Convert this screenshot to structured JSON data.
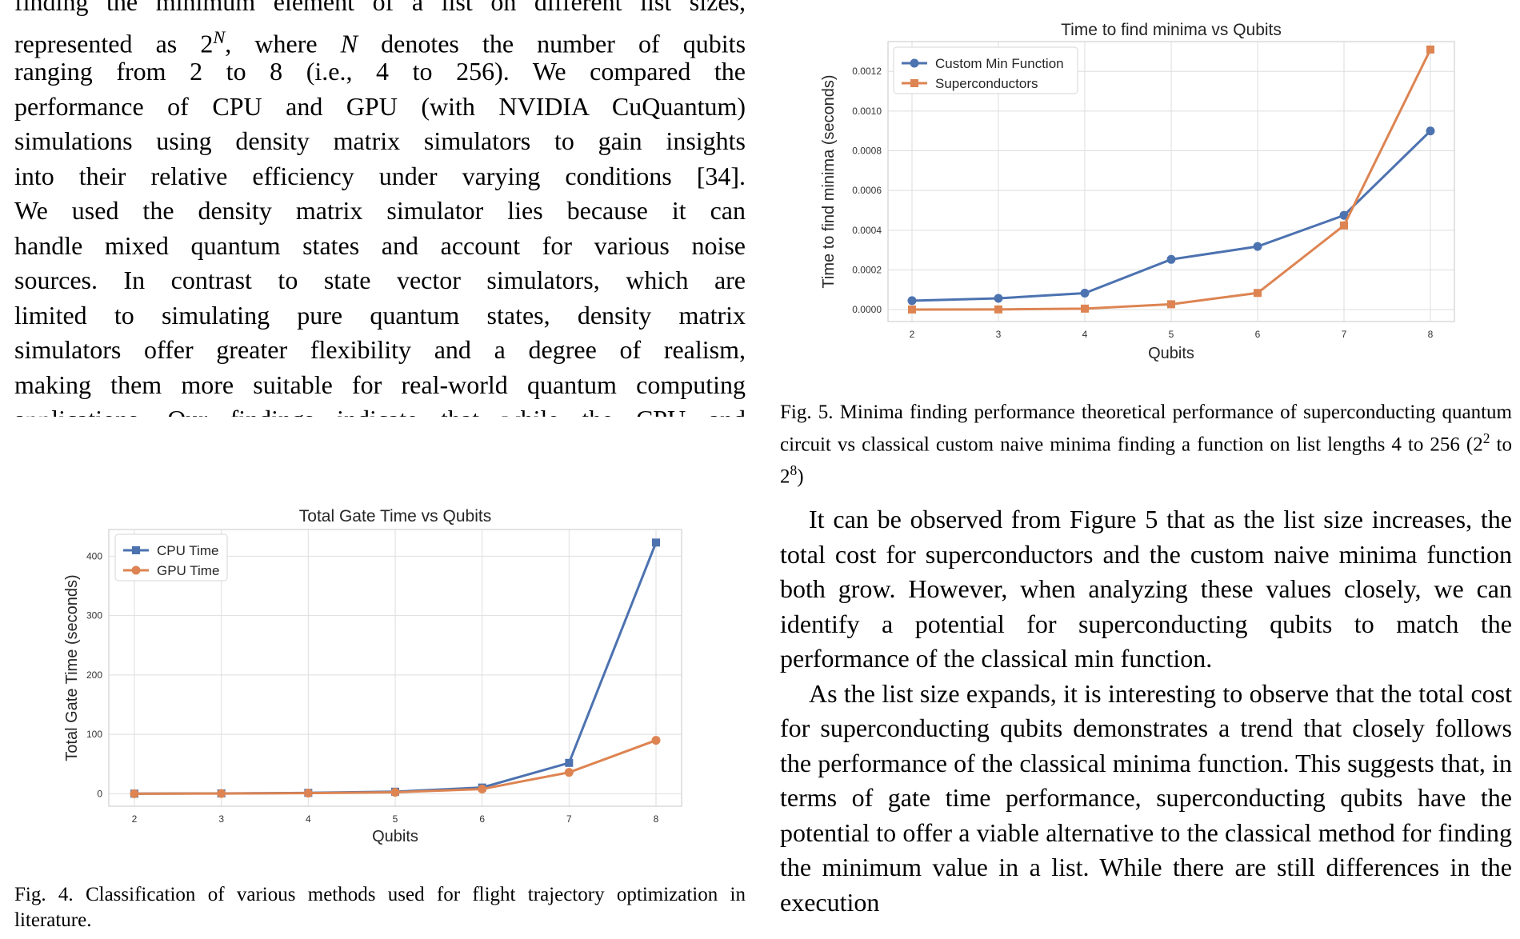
{
  "left_text": {
    "lines": [
      "finding the minimum element of a list on different list sizes,",
      "represented as 2^N, where N denotes the number of qubits",
      "ranging from 2 to 8 (i.e., 4 to 256). We compared the",
      "performance of CPU and GPU (with NVIDIA CuQuantum)",
      "simulations using density matrix simulators to gain insights",
      "into their relative efficiency under varying conditions [34].",
      "We used the density matrix simulator lies because it can",
      "handle mixed quantum states and account for various noise",
      "sources. In contrast to state vector simulators, which are",
      "limited to simulating pure quantum states, density matrix",
      "simulators offer greater flexibility and a degree of realism,",
      "making them more suitable for real-world quantum computing",
      "applications. Our findings indicate that while the CPU and"
    ]
  },
  "fig5": {
    "caption": "Fig. 5.  Minima finding performance theoretical performance of superconducting quantum circuit vs classical custom naive minima finding a function on list lengths 4 to 256 (2^2 to 2^8)"
  },
  "fig4": {
    "caption": "Fig. 4.  Classification of various methods used for flight trajectory optimization in literature."
  },
  "right_text": {
    "paragraphs": [
      "It can be observed from Figure 5 that as the list size increases, the total cost for superconductors and the custom naive minima function both grow. However, when analyzing these values closely, we can identify a potential for superconducting qubits to match the performance of the classical min function.",
      "As the list size expands, it is interesting to observe that the total cost for superconducting qubits demonstrates a trend that closely follows the performance of the classical minima function. This suggests that, in terms of gate time performance, superconducting qubits have the potential to offer a viable alternative to the classical method for finding the minimum value in a list. While there are still differences in the execution"
    ]
  },
  "chart_data": [
    {
      "type": "line",
      "title": "Time to find minima vs Qubits",
      "xlabel": "Qubits",
      "ylabel": "Time to find minima (seconds)",
      "x": [
        2,
        3,
        4,
        5,
        6,
        7,
        8
      ],
      "ylim": [
        -6e-05,
        0.00135
      ],
      "yticks": [
        "0.0000",
        "0.0002",
        "0.0004",
        "0.0006",
        "0.0008",
        "0.0010",
        "0.0012"
      ],
      "ytick_values": [
        0,
        0.0002,
        0.0004,
        0.0006,
        0.0008,
        0.001,
        0.0012
      ],
      "grid": true,
      "legend": "top-left",
      "series": [
        {
          "name": "Custom Min Function",
          "color": "#4C72B0",
          "marker": "circle",
          "values": [
            4.5e-05,
            5.7e-05,
            8.3e-05,
            0.000253,
            0.000318,
            0.000475,
            0.0009
          ]
        },
        {
          "name": "Superconductors",
          "color": "#DD8452",
          "marker": "square",
          "values": [
            5e-07,
            1e-06,
            5e-06,
            2.7e-05,
            8.4e-05,
            0.000424,
            0.00131
          ]
        }
      ]
    },
    {
      "type": "line",
      "title": "Total Gate Time vs Qubits",
      "xlabel": "Qubits",
      "ylabel": "Total Gate Time (seconds)",
      "x": [
        2,
        3,
        4,
        5,
        6,
        7,
        8
      ],
      "ylim": [
        -21,
        445
      ],
      "yticks": [
        "0",
        "100",
        "200",
        "300",
        "400"
      ],
      "ytick_values": [
        0,
        100,
        200,
        300,
        400
      ],
      "grid": true,
      "legend": "top-left",
      "series": [
        {
          "name": "CPU Time",
          "color": "#4C72B0",
          "marker": "square",
          "values": [
            0.2,
            0.6,
            1.5,
            3.5,
            10.5,
            52,
            423
          ]
        },
        {
          "name": "GPU Time",
          "color": "#DD8452",
          "marker": "circle",
          "values": [
            0.1,
            0.4,
            1.0,
            2.5,
            8.0,
            36,
            90
          ]
        }
      ]
    }
  ]
}
